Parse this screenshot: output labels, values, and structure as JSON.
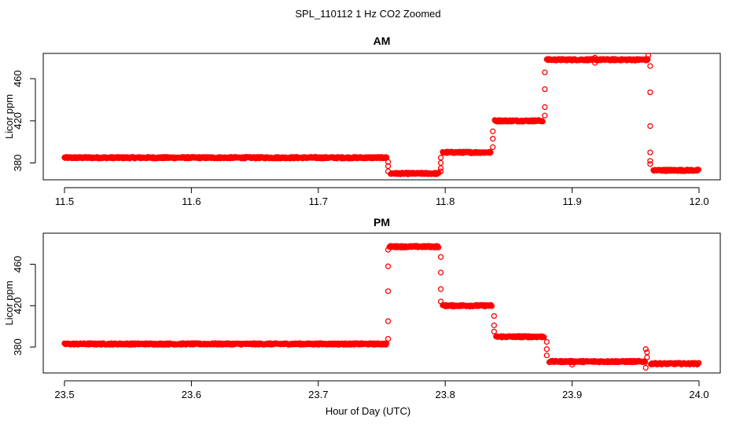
{
  "figure": {
    "title": "SPL_110112  1 Hz CO2 Zoomed",
    "xlabel": "Hour of Day (UTC)"
  },
  "chart_data": [
    {
      "type": "scatter",
      "title": "AM",
      "xlabel": "Hour of Day (UTC)",
      "ylabel": "Licor ppm",
      "xlim": [
        11.5,
        12.0
      ],
      "ylim": [
        364,
        484
      ],
      "xticks": [
        "11.5",
        "11.6",
        "11.7",
        "11.8",
        "11.9",
        "12.0"
      ],
      "yticks": [
        "380",
        "420",
        "460"
      ],
      "marker_color": "#ff0000",
      "series": [
        {
          "segments": [
            {
              "x_start": 11.5,
              "x_end": 11.754,
              "y": 385
            },
            {
              "x_start": 11.757,
              "x_end": 11.795,
              "y": 370
            },
            {
              "x_start": 11.798,
              "x_end": 11.836,
              "y": 390
            },
            {
              "x_start": 11.839,
              "x_end": 11.877,
              "y": 420
            },
            {
              "x_start": 11.88,
              "x_end": 11.96,
              "y": 478
            },
            {
              "x_start": 11.964,
              "x_end": 12.0,
              "y": 373
            }
          ],
          "transitions": [
            {
              "x": 11.755,
              "y": [
                381,
                377,
                372
              ]
            },
            {
              "x": 11.7965,
              "y": [
                372,
                375,
                380,
                385
              ]
            },
            {
              "x": 11.8375,
              "y": [
                395,
                403,
                410
              ]
            },
            {
              "x": 11.8785,
              "y": [
                425,
                433,
                450,
                466
              ]
            },
            {
              "x": 11.9615,
              "y": [
                472,
                447,
                415,
                390,
                382,
                379
              ]
            }
          ],
          "outliers": [
            {
              "x": 11.918,
              "y": 480
            },
            {
              "x": 11.918,
              "y": 475
            },
            {
              "x": 11.96,
              "y": 482
            }
          ]
        }
      ]
    },
    {
      "type": "scatter",
      "title": "PM",
      "xlabel": "Hour of Day (UTC)",
      "ylabel": "Licor ppm",
      "xlim": [
        23.5,
        24.0
      ],
      "ylim": [
        355,
        490
      ],
      "xticks": [
        "23.5",
        "23.6",
        "23.7",
        "23.8",
        "23.9",
        "24.0"
      ],
      "yticks": [
        "380",
        "420",
        "460"
      ],
      "marker_color": "#ff0000",
      "series": [
        {
          "segments": [
            {
              "x_start": 23.5,
              "x_end": 23.754,
              "y": 383
            },
            {
              "x_start": 23.756,
              "x_end": 23.795,
              "y": 477
            },
            {
              "x_start": 23.798,
              "x_end": 23.837,
              "y": 420
            },
            {
              "x_start": 23.84,
              "x_end": 23.878,
              "y": 390
            },
            {
              "x_start": 23.882,
              "x_end": 23.958,
              "y": 366
            },
            {
              "x_start": 23.962,
              "x_end": 24.0,
              "y": 364
            }
          ],
          "transitions": [
            {
              "x": 23.755,
              "y": [
                388,
                405,
                434,
                458,
                474
              ]
            },
            {
              "x": 23.7965,
              "y": [
                467,
                452,
                436,
                424
              ]
            },
            {
              "x": 23.8385,
              "y": [
                410,
                401,
                395
              ]
            },
            {
              "x": 23.88,
              "y": [
                385,
                378,
                372
              ]
            },
            {
              "x": 23.959,
              "y": [
                375,
                370
              ]
            }
          ],
          "outliers": [
            {
              "x": 23.958,
              "y": 378
            },
            {
              "x": 23.958,
              "y": 360
            },
            {
              "x": 23.9,
              "y": 363
            }
          ]
        }
      ]
    }
  ]
}
